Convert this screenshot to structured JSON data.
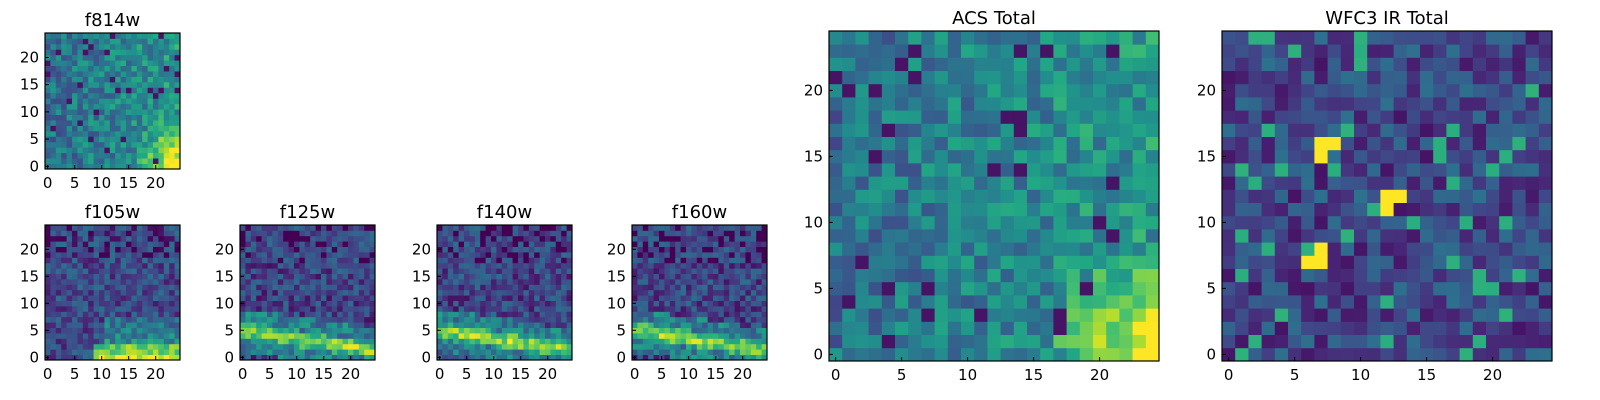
{
  "chart_data": [
    {
      "type": "heatmap",
      "title": "f814w",
      "grid_size": [
        25,
        25
      ],
      "xlim": [
        -0.5,
        24.5
      ],
      "ylim": [
        -0.5,
        24.5
      ],
      "xticks": [
        0,
        5,
        10,
        15,
        20
      ],
      "yticks": [
        0,
        5,
        10,
        15,
        20
      ],
      "colormap": "viridis",
      "bright_region": "bottom-right corner",
      "seed": 11,
      "xlabel": "",
      "ylabel": ""
    },
    {
      "type": "heatmap",
      "title": "f105w",
      "grid_size": [
        25,
        25
      ],
      "xlim": [
        -0.5,
        24.5
      ],
      "ylim": [
        -0.5,
        24.5
      ],
      "xticks": [
        0,
        5,
        10,
        15,
        20
      ],
      "yticks": [
        0,
        5,
        10,
        15,
        20
      ],
      "colormap": "viridis",
      "bright_region": "bottom band",
      "seed": 23,
      "xlabel": "",
      "ylabel": ""
    },
    {
      "type": "heatmap",
      "title": "f125w",
      "grid_size": [
        25,
        25
      ],
      "xlim": [
        -0.5,
        24.5
      ],
      "ylim": [
        -0.5,
        24.5
      ],
      "xticks": [
        0,
        5,
        10,
        15,
        20
      ],
      "yticks": [
        0,
        5,
        10,
        15,
        20
      ],
      "colormap": "viridis",
      "bright_region": "diagonal band near bottom",
      "seed": 37,
      "xlabel": "",
      "ylabel": ""
    },
    {
      "type": "heatmap",
      "title": "f140w",
      "grid_size": [
        25,
        25
      ],
      "xlim": [
        -0.5,
        24.5
      ],
      "ylim": [
        -0.5,
        24.5
      ],
      "xticks": [
        0,
        5,
        10,
        15,
        20
      ],
      "yticks": [
        0,
        5,
        10,
        15,
        20
      ],
      "colormap": "viridis",
      "bright_region": "diagonal band near bottom",
      "seed": 41,
      "xlabel": "",
      "ylabel": ""
    },
    {
      "type": "heatmap",
      "title": "f160w",
      "grid_size": [
        25,
        25
      ],
      "xlim": [
        -0.5,
        24.5
      ],
      "ylim": [
        -0.5,
        24.5
      ],
      "xticks": [
        0,
        5,
        10,
        15,
        20
      ],
      "yticks": [
        0,
        5,
        10,
        15,
        20
      ],
      "colormap": "viridis",
      "bright_region": "diagonal band near bottom",
      "seed": 53,
      "xlabel": "",
      "ylabel": ""
    },
    {
      "type": "heatmap",
      "title": "ACS Total",
      "grid_size": [
        25,
        25
      ],
      "xlim": [
        -0.5,
        24.5
      ],
      "ylim": [
        -0.5,
        24.5
      ],
      "xticks": [
        0,
        5,
        10,
        15,
        20
      ],
      "yticks": [
        0,
        5,
        10,
        15,
        20
      ],
      "colormap": "viridis",
      "bright_region": "bottom-right corner",
      "seed": 67,
      "xlabel": "",
      "ylabel": ""
    },
    {
      "type": "heatmap",
      "title": "WFC3 IR Total",
      "grid_size": [
        25,
        25
      ],
      "xlim": [
        -0.5,
        24.5
      ],
      "ylim": [
        -0.5,
        24.5
      ],
      "xticks": [
        0,
        5,
        10,
        15,
        20
      ],
      "yticks": [
        0,
        5,
        10,
        15,
        20
      ],
      "colormap": "viridis",
      "bright_region": "three small hot spots",
      "hot_pixels": [
        [
          7,
          16
        ],
        [
          8,
          16
        ],
        [
          7,
          15
        ],
        [
          12,
          12
        ],
        [
          13,
          12
        ],
        [
          12,
          11
        ],
        [
          7,
          8
        ],
        [
          7,
          7
        ],
        [
          6,
          7
        ]
      ],
      "seed": 79,
      "xlabel": "",
      "ylabel": ""
    }
  ]
}
